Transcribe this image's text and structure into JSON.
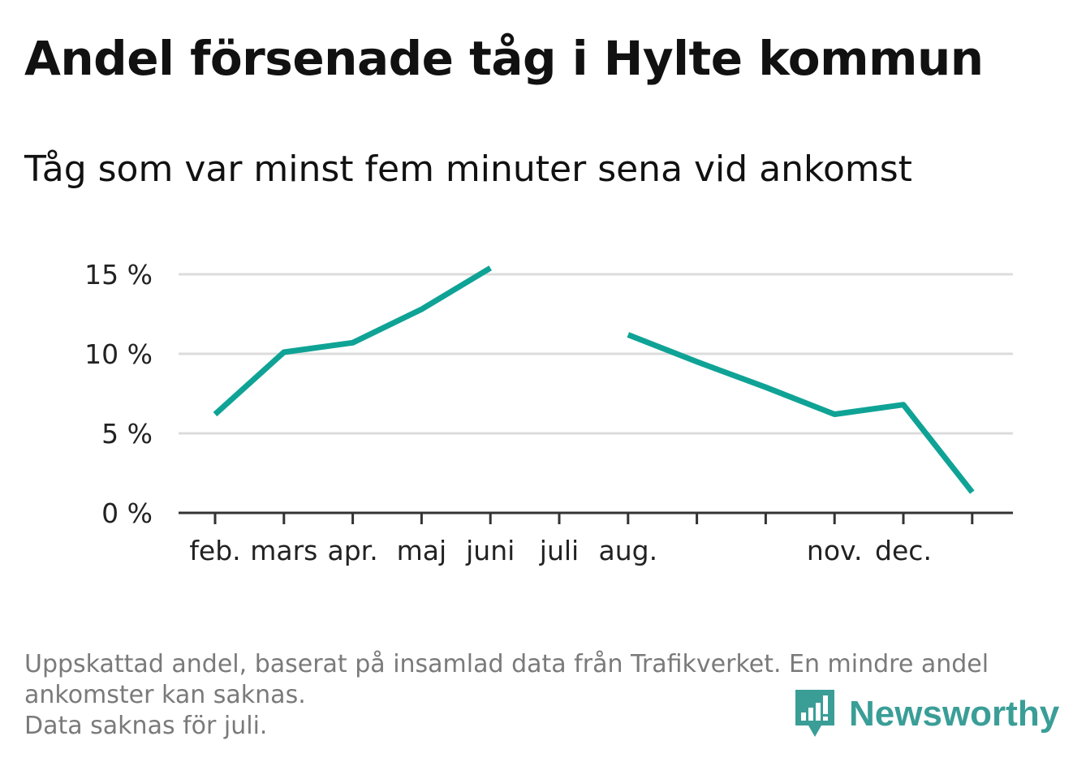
{
  "header": {
    "title": "Andel försenade tåg i Hylte kommun",
    "subtitle": "Tåg som var minst fem minuter sena vid ankomst"
  },
  "chart_data": {
    "type": "line",
    "title": "Andel försenade tåg i Hylte kommun",
    "subtitle": "Tåg som var minst fem minuter sena vid ankomst",
    "xlabel": "",
    "ylabel": "",
    "categories": [
      "feb.",
      "mars",
      "apr.",
      "maj",
      "juni",
      "juli",
      "aug.",
      "",
      "",
      "nov.",
      "dec.",
      ""
    ],
    "series": [
      {
        "values": [
          6.2,
          10.1,
          10.7,
          12.8,
          15.4,
          null,
          11.2,
          9.5,
          7.9,
          6.2,
          6.8,
          1.3
        ]
      }
    ],
    "yticks": [
      0,
      5,
      10,
      15
    ],
    "ytick_labels": [
      "0 %",
      "5 %",
      "10 %",
      "15 %"
    ],
    "ylim": [
      0,
      15
    ],
    "grid": true,
    "legend": "none",
    "colors": {
      "line": "#0fa396",
      "grid": "#dcdcdc",
      "axis": "#333333",
      "tick_label": "#222222"
    }
  },
  "footnote": {
    "line1": "Uppskattad andel, baserat på insamlad data från Trafikverket. En mindre andel",
    "line2": "ankomster kan saknas.",
    "line3": "Data saknas för juli."
  },
  "brand": {
    "name": "Newsworthy",
    "icon": "newsworthy-logo-icon",
    "color": "#3a9e97"
  }
}
